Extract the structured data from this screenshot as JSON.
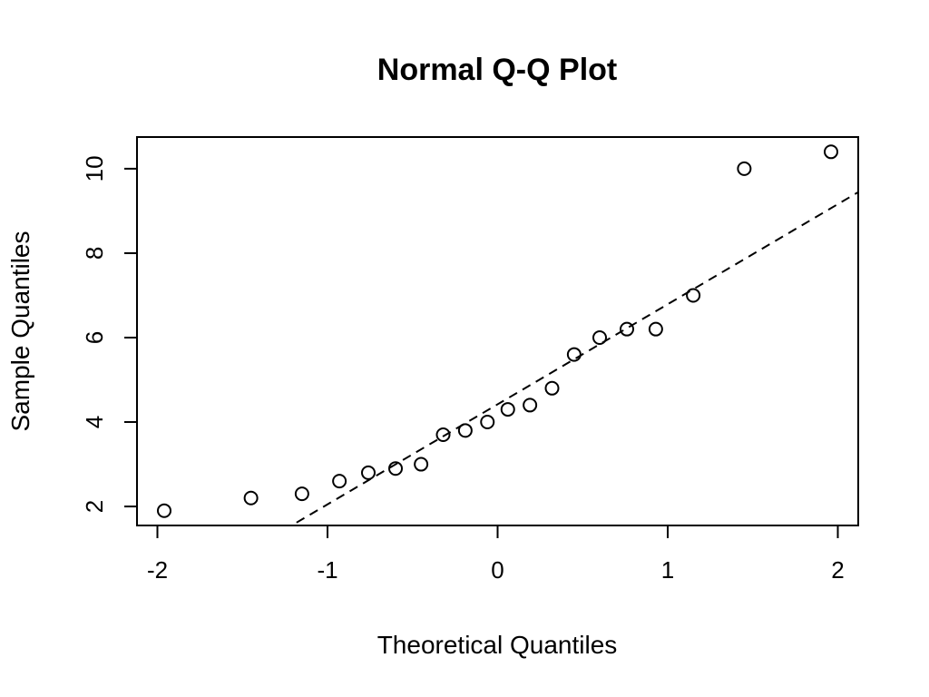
{
  "chart_data": {
    "type": "scatter",
    "title": "Normal Q-Q Plot",
    "xlabel": "Theoretical Quantiles",
    "ylabel": "Sample Quantiles",
    "xlim": [
      -2.12,
      2.12
    ],
    "ylim": [
      1.55,
      10.75
    ],
    "x_ticks": [
      -2,
      -1,
      0,
      1,
      2
    ],
    "y_ticks": [
      2,
      4,
      6,
      8,
      10
    ],
    "grid": false,
    "legend": "none",
    "points": [
      {
        "x": -1.96,
        "y": 1.9
      },
      {
        "x": -1.45,
        "y": 2.2
      },
      {
        "x": -1.15,
        "y": 2.3
      },
      {
        "x": -0.93,
        "y": 2.6
      },
      {
        "x": -0.76,
        "y": 2.8
      },
      {
        "x": -0.6,
        "y": 2.9
      },
      {
        "x": -0.45,
        "y": 3.0
      },
      {
        "x": -0.32,
        "y": 3.7
      },
      {
        "x": -0.19,
        "y": 3.8
      },
      {
        "x": -0.06,
        "y": 4.0
      },
      {
        "x": 0.06,
        "y": 4.3
      },
      {
        "x": 0.19,
        "y": 4.4
      },
      {
        "x": 0.32,
        "y": 4.8
      },
      {
        "x": 0.45,
        "y": 5.6
      },
      {
        "x": 0.6,
        "y": 6.0
      },
      {
        "x": 0.76,
        "y": 6.2
      },
      {
        "x": 0.93,
        "y": 6.2
      },
      {
        "x": 1.15,
        "y": 7.0
      },
      {
        "x": 1.45,
        "y": 10.0
      },
      {
        "x": 1.96,
        "y": 10.4
      }
    ],
    "reference_line": {
      "intercept": 4.42,
      "slope": 2.37,
      "style": "dashed"
    }
  }
}
